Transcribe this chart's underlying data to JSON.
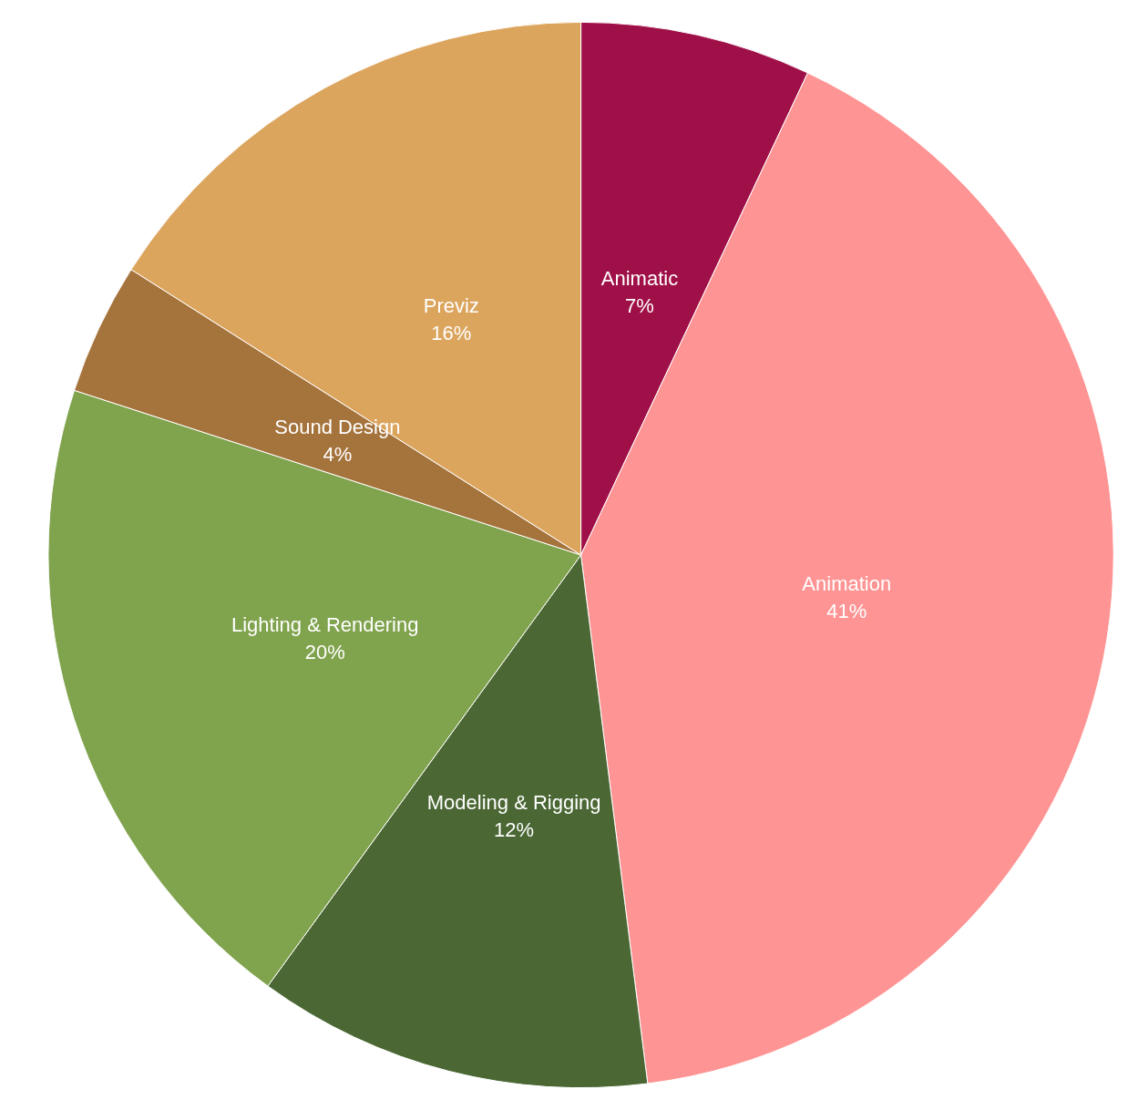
{
  "chart_data": {
    "type": "pie",
    "categories": [
      "Animatic",
      "Animation",
      "Modeling & Rigging",
      "Lighting & Rendering",
      "Sound Design",
      "Previz"
    ],
    "values": [
      7,
      41,
      12,
      20,
      4,
      16
    ],
    "value_labels": [
      "7%",
      "41%",
      "12%",
      "20%",
      "4%",
      "16%"
    ],
    "colors": [
      "#a01048",
      "#ff9494",
      "#4a6734",
      "#80a34d",
      "#a5733c",
      "#dca55e"
    ],
    "legend": false
  }
}
